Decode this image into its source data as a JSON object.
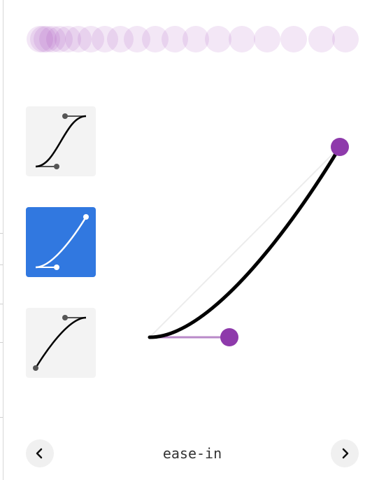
{
  "colors": {
    "accent": "#8e3aab",
    "accent_light": "#b98ac9",
    "selected_bg": "#3178e0",
    "preset_bg": "#f3f3f3",
    "curve": "#000000"
  },
  "presets": [
    {
      "name": "ease-in-out",
      "selected": false
    },
    {
      "name": "ease-in",
      "selected": true
    },
    {
      "name": "ease-out",
      "selected": false
    }
  ],
  "editor": {
    "control_points": [
      0.42,
      0,
      1,
      1
    ]
  },
  "footer": {
    "curve_name": "ease-in",
    "prev_icon": "chevron-left-icon",
    "next_icon": "chevron-right-icon"
  }
}
